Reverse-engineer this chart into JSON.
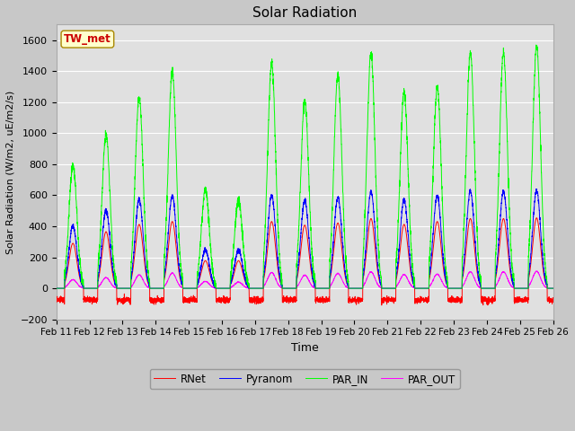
{
  "title": "Solar Radiation",
  "ylabel": "Solar Radiation (W/m2, uE/m2/s)",
  "xlabel": "Time",
  "station_label": "TW_met",
  "ylim": [
    -200,
    1700
  ],
  "yticks": [
    -200,
    0,
    200,
    400,
    600,
    800,
    1000,
    1200,
    1400,
    1600
  ],
  "xtick_labels": [
    "Feb 11",
    "Feb 12",
    "Feb 13",
    "Feb 14",
    "Feb 15",
    "Feb 16",
    "Feb 17",
    "Feb 18",
    "Feb 19",
    "Feb 20",
    "Feb 21",
    "Feb 22",
    "Feb 23",
    "Feb 24",
    "Feb 25",
    "Feb 26"
  ],
  "colors": {
    "RNet": "#ff0000",
    "Pyranom": "#0000ff",
    "PAR_IN": "#00ff00",
    "PAR_OUT": "#ff00ff"
  },
  "fig_bg_color": "#c8c8c8",
  "plot_bg_color": "#e0e0e0",
  "grid_color": "#ffffff",
  "station_box_facecolor": "#ffffcc",
  "station_box_edgecolor": "#aa8800",
  "station_text_color": "#cc0000",
  "n_days": 15,
  "points_per_day": 288,
  "PAR_base_amp": 1100,
  "Pyr_base_amp": 650,
  "PAR_OUT_scale": 0.07,
  "RNet_scale": 0.72,
  "night_rnet": -75,
  "cloud_factors_PAR": [
    0.72,
    0.9,
    1.12,
    1.27,
    0.58,
    0.52,
    1.32,
    1.1,
    1.25,
    1.38,
    1.15,
    1.18,
    1.38,
    1.38,
    1.42
  ],
  "cloud_factors_Pyr": [
    0.62,
    0.78,
    0.88,
    0.92,
    0.38,
    0.38,
    0.92,
    0.87,
    0.9,
    0.96,
    0.88,
    0.92,
    0.96,
    0.96,
    0.97
  ]
}
